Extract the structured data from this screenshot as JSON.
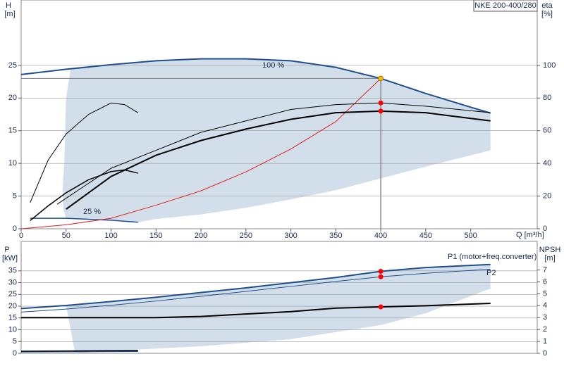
{
  "chart_data": [
    {
      "type": "line",
      "title": "NKE 200-400/280",
      "y_label": "H",
      "y_unit": "[m]",
      "y2_label": "eta",
      "y2_unit": "[%]",
      "x_label": "Q [m³/h]",
      "xlim": [
        0,
        574
      ],
      "xticks": [
        0,
        50,
        100,
        150,
        200,
        250,
        300,
        350,
        400,
        450,
        500
      ],
      "ylim": [
        0,
        35
      ],
      "yticks": [
        0,
        5,
        10,
        15,
        20,
        25
      ],
      "y2lim": [
        0,
        140
      ],
      "y2ticks": [
        0,
        20,
        40,
        60,
        80,
        100
      ],
      "grid": true,
      "region": {
        "color": "#cddbe8",
        "x": [
          48,
          50,
          55,
          100,
          150,
          200,
          250,
          300,
          350,
          400,
          450,
          522,
          522,
          450,
          400,
          350,
          300,
          250,
          200,
          150,
          130,
          100,
          50,
          47,
          46
        ],
        "values": [
          10,
          20,
          24.4,
          25.1,
          25.7,
          26,
          26,
          25.7,
          24.7,
          23,
          20.7,
          17.7,
          12,
          9.5,
          7.7,
          5.9,
          4.5,
          3.2,
          2.2,
          1.5,
          1.0,
          1.3,
          1.6,
          3,
          6
        ]
      },
      "series": [
        {
          "name": "100 %",
          "color": "#1f4e8c",
          "width": 2,
          "axis": "y",
          "x": [
            0,
            50,
            100,
            150,
            200,
            250,
            300,
            350,
            400,
            450,
            500,
            522
          ],
          "values": [
            23.6,
            24.4,
            25.1,
            25.7,
            26,
            26,
            25.7,
            24.7,
            23,
            20.7,
            18.6,
            17.7
          ]
        },
        {
          "name": "25 %",
          "color": "#1f4e8c",
          "width": 1.5,
          "axis": "y",
          "x": [
            10,
            50,
            100,
            130
          ],
          "values": [
            1.6,
            1.6,
            1.3,
            1.0
          ]
        },
        {
          "color": "#e02020",
          "width": 1,
          "axis": "y",
          "x": [
            0,
            50,
            100,
            150,
            200,
            250,
            300,
            350,
            400
          ],
          "values": [
            0,
            0.6,
            1.6,
            3.6,
            5.8,
            8.7,
            12.2,
            16.4,
            23
          ]
        },
        {
          "color": "#000000",
          "width": 1,
          "axis": "y2",
          "x": [
            40,
            100,
            150,
            200,
            250,
            300,
            350,
            400,
            450,
            522
          ],
          "values": [
            15,
            37,
            48,
            59,
            66,
            73,
            76,
            77,
            75,
            71
          ]
        },
        {
          "color": "#000000",
          "width": 2,
          "axis": "y2",
          "x": [
            50,
            100,
            150,
            200,
            250,
            300,
            350,
            400,
            450,
            522
          ],
          "values": [
            12,
            32,
            45,
            54,
            61,
            67,
            71,
            72,
            71,
            66
          ]
        },
        {
          "color": "#000000",
          "width": 1,
          "axis": "y2",
          "x": [
            10,
            30,
            50,
            75,
            100,
            115,
            130
          ],
          "values": [
            16,
            42,
            58,
            70,
            77,
            76,
            71
          ]
        },
        {
          "color": "#000000",
          "width": 1.5,
          "axis": "y2",
          "x": [
            10,
            30,
            50,
            75,
            100,
            115,
            130
          ],
          "values": [
            5,
            14,
            22,
            30,
            35,
            36,
            34
          ]
        }
      ],
      "markers": [
        {
          "x": 400,
          "value": 23,
          "axis": "y",
          "color": "#f5b800"
        },
        {
          "x": 400,
          "value": 77,
          "axis": "y2",
          "color": "#ff0000"
        },
        {
          "x": 400,
          "value": 72,
          "axis": "y2",
          "color": "#ff0000"
        }
      ]
    },
    {
      "type": "line",
      "y_label": "P",
      "y_unit": "[kW]",
      "y2_label": "NPSH",
      "y2_unit": "[m]",
      "xlim": [
        0,
        574
      ],
      "ylim": [
        0,
        47.5
      ],
      "yticks": [
        0,
        5,
        10,
        15,
        20,
        25,
        30,
        35
      ],
      "y2lim": [
        0,
        9.4
      ],
      "y2ticks": [
        0,
        1,
        2,
        3,
        4,
        5,
        6,
        7
      ],
      "grid": true,
      "region": {
        "color": "#cddbe8",
        "x": [
          50,
          100,
          150,
          200,
          250,
          300,
          350,
          400,
          450,
          522,
          522,
          450,
          400,
          300,
          200,
          100,
          60
        ],
        "values": [
          20.3,
          22,
          23.8,
          25.8,
          27.8,
          30,
          32.2,
          34.8,
          36.4,
          37.7,
          27.5,
          17,
          12,
          6,
          3,
          1,
          0
        ]
      },
      "series": [
        {
          "name": "P1 (motor+freq.converter)",
          "color": "#1f4e8c",
          "width": 2,
          "axis": "y",
          "x": [
            0,
            50,
            100,
            150,
            200,
            250,
            300,
            350,
            400,
            450,
            522
          ],
          "values": [
            19,
            20.3,
            22,
            23.8,
            25.8,
            27.8,
            30,
            32.2,
            34.8,
            36.4,
            37.7
          ]
        },
        {
          "name": "P2",
          "color": "#1f4e8c",
          "width": 1,
          "axis": "y",
          "x": [
            0,
            50,
            100,
            150,
            200,
            250,
            300,
            350,
            400,
            450,
            522
          ],
          "values": [
            17.5,
            18.8,
            20.4,
            22.2,
            24.2,
            26.3,
            28.4,
            30.5,
            32.5,
            34,
            35.7
          ]
        },
        {
          "color": "#000000",
          "width": 2,
          "axis": "y2",
          "x": [
            0,
            50,
            100,
            150,
            200,
            250,
            300,
            350,
            400,
            450,
            522
          ],
          "values": [
            3.0,
            3.0,
            3.0,
            3.0,
            3.1,
            3.3,
            3.5,
            3.8,
            3.9,
            4.0,
            4.2
          ]
        },
        {
          "color": "#1f4e8c",
          "width": 2,
          "axis": "y",
          "x": [
            0,
            130
          ],
          "values": [
            0.7,
            0.9
          ]
        },
        {
          "color": "#000000",
          "width": 1.5,
          "axis": "y",
          "x": [
            0,
            130
          ],
          "values": [
            0.9,
            1.2
          ]
        }
      ],
      "markers": [
        {
          "x": 400,
          "value": 34.8,
          "axis": "y",
          "color": "#ff0000"
        },
        {
          "x": 400,
          "value": 32.5,
          "axis": "y",
          "color": "#ff0000"
        },
        {
          "x": 400,
          "value": 3.9,
          "axis": "y2",
          "color": "#ff0000"
        }
      ]
    }
  ]
}
